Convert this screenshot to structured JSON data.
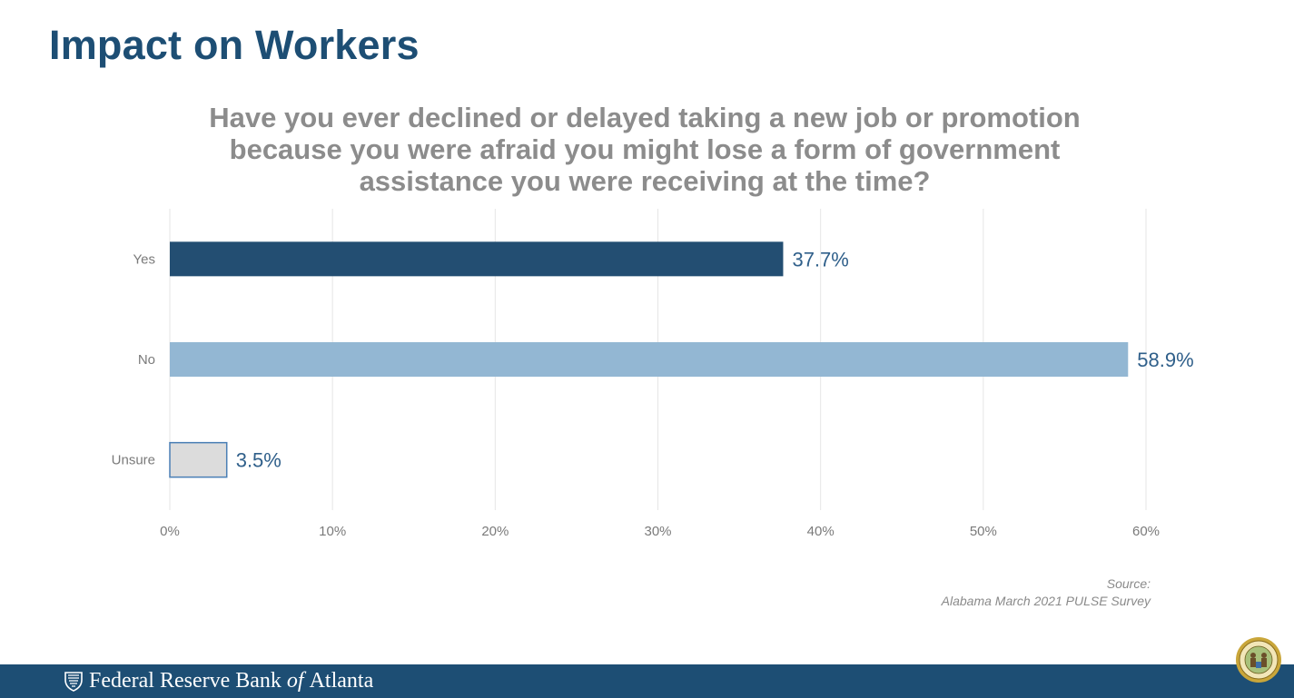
{
  "slide": {
    "title": "Impact on Workers"
  },
  "chart_data": {
    "type": "bar",
    "orientation": "horizontal",
    "title": "Have you ever declined or delayed taking a new job or promotion because you were afraid you might lose a form of government assistance you were receiving at the time?",
    "title_lines": [
      "Have you ever declined or delayed taking a new job or promotion",
      "because you were afraid you might lose a form of government",
      "assistance you were receiving at the time?"
    ],
    "categories": [
      "Yes",
      "No",
      "Unsure"
    ],
    "values": [
      37.7,
      58.9,
      3.5
    ],
    "value_labels": [
      "37.7%",
      "58.9%",
      "3.5%"
    ],
    "bar_colors": [
      "#234e72",
      "#93b7d3",
      "#dcdcdc"
    ],
    "xlim": [
      0,
      60
    ],
    "xticks": [
      0,
      10,
      20,
      30,
      40,
      50,
      60
    ],
    "xtick_labels": [
      "0%",
      "10%",
      "20%",
      "30%",
      "40%",
      "50%",
      "60%"
    ],
    "grid": true,
    "legend": "none",
    "xlabel": "",
    "ylabel": ""
  },
  "source": {
    "label": "Source:",
    "text": "Alabama March 2021 PULSE Survey"
  },
  "footer": {
    "brand_prefix": "Federal Reserve Bank",
    "brand_of": "of",
    "brand_suffix": "Atlanta",
    "logo_icon": "eagle-shield-icon",
    "seal_icon": "state-seal-icon"
  },
  "colors": {
    "brand_navy": "#1d4e74",
    "value_label": "#2f5f8a",
    "axis_text": "#7a7a7a",
    "grid": "#e6e6e6",
    "unsure_border": "#4a7fb5"
  }
}
